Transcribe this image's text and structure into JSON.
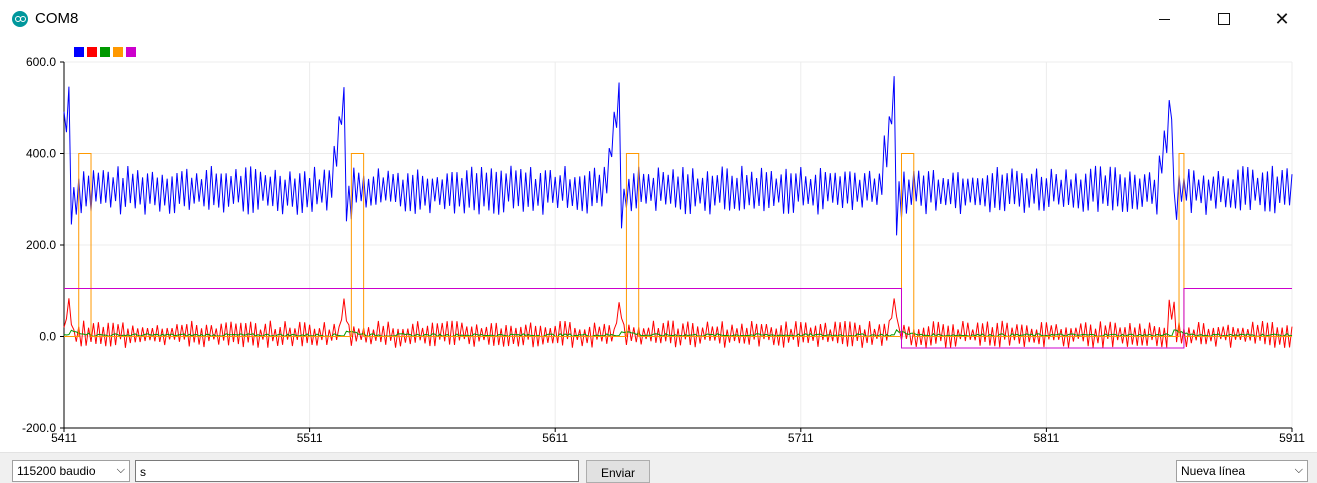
{
  "window": {
    "title": "COM8"
  },
  "legend": {
    "colors": [
      "#0000ff",
      "#ff0000",
      "#009900",
      "#ff9900",
      "#cc00cc"
    ]
  },
  "controls": {
    "baud_label": "115200 baudio",
    "send_value": "s",
    "send_label": "Enviar",
    "line_ending_label": "Nueva línea"
  },
  "chart_data": {
    "type": "line",
    "title": "",
    "xlabel": "",
    "ylabel": "",
    "xlim": [
      5411,
      5911
    ],
    "ylim": [
      -200,
      600
    ],
    "x_ticks": [
      "5411",
      "5511",
      "5611",
      "5711",
      "5811",
      "5911"
    ],
    "y_ticks": [
      "600.0",
      "400.0",
      "200.0",
      "0.0",
      "-200.0"
    ],
    "grid": true,
    "legend_placement": "top-left",
    "series": [
      {
        "color": "#0000ff",
        "baseline": 320,
        "amplitude": 45,
        "peaks_at": [
          5413,
          5525,
          5637,
          5749,
          5862
        ],
        "peak_value": 520,
        "values_sample": [
          380,
          520,
          270,
          330,
          290,
          350,
          300,
          370,
          280,
          340
        ]
      },
      {
        "color": "#ff0000",
        "baseline": 5,
        "amplitude": 25,
        "values_sample": [
          -30,
          40,
          -25,
          30,
          -20,
          25,
          -30,
          35,
          -25,
          20
        ]
      },
      {
        "color": "#009900",
        "baseline": 3,
        "amplitude": 3,
        "values_sample": [
          5,
          2,
          4,
          3,
          5,
          2,
          3,
          4,
          2,
          3
        ]
      },
      {
        "color": "#ff9900",
        "pulse_high": 400,
        "pulse_low": 0,
        "pulses": [
          [
            5417,
            5422
          ],
          [
            5528,
            5533
          ],
          [
            5640,
            5645
          ],
          [
            5752,
            5757
          ],
          [
            5865,
            5867
          ]
        ]
      },
      {
        "color": "#cc00cc",
        "steps": [
          [
            5411,
            105
          ],
          [
            5752,
            105
          ],
          [
            5752,
            -25
          ],
          [
            5867,
            -25
          ],
          [
            5867,
            105
          ],
          [
            5911,
            105
          ]
        ]
      }
    ]
  }
}
